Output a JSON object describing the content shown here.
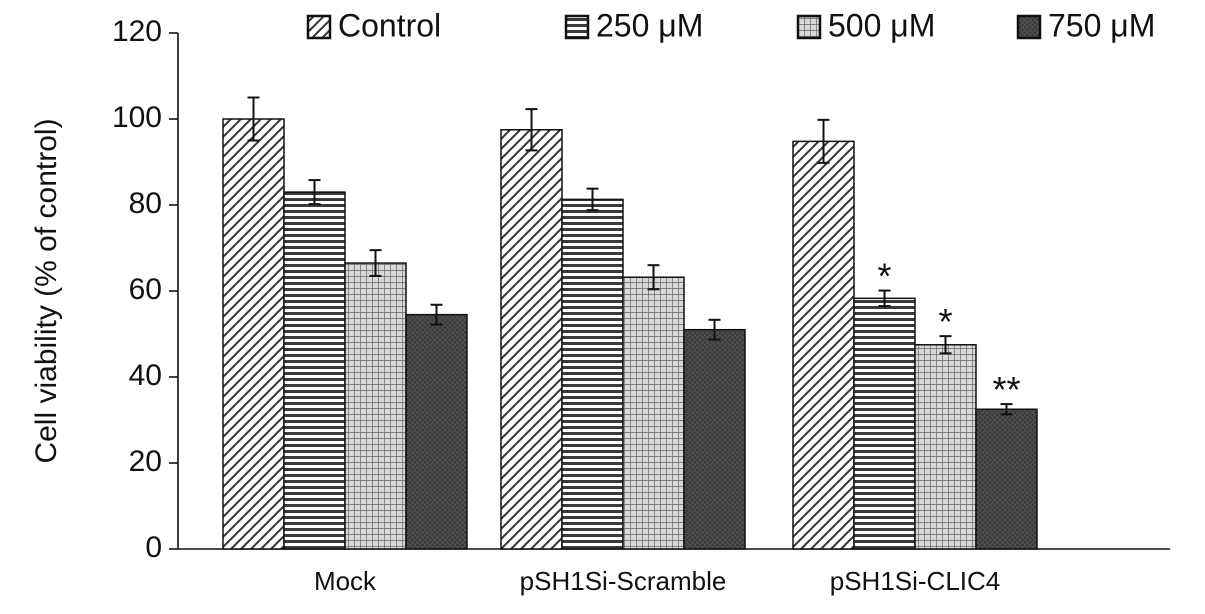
{
  "chart_data": {
    "type": "bar",
    "categories": [
      "Mock",
      "pSH1Si-Scramble",
      "pSH1Si-CLIC4"
    ],
    "series": [
      {
        "name": "Control",
        "pattern": "diagonal",
        "values": [
          100,
          97.5,
          94.8
        ],
        "errors": [
          5,
          4.8,
          5
        ]
      },
      {
        "name": "250 μM",
        "pattern": "horizontal",
        "values": [
          83,
          81.3,
          58.3
        ],
        "errors": [
          2.8,
          2.5,
          1.8
        ]
      },
      {
        "name": "500 μM",
        "pattern": "grid",
        "values": [
          66.5,
          63.2,
          47.5
        ],
        "errors": [
          3,
          2.8,
          2
        ]
      },
      {
        "name": "750 μM",
        "pattern": "dark-crosshatch",
        "values": [
          54.5,
          51,
          32.5
        ],
        "errors": [
          2.3,
          2.3,
          1.2
        ]
      }
    ],
    "annotations": [
      {
        "category": "pSH1Si-CLIC4",
        "series": "250 μM",
        "text": "*"
      },
      {
        "category": "pSH1Si-CLIC4",
        "series": "500 μM",
        "text": "*"
      },
      {
        "category": "pSH1Si-CLIC4",
        "series": "750 μM",
        "text": "**"
      }
    ],
    "ylabel": "Cell viability (% of control)",
    "xlabel": "",
    "ylim": [
      0,
      120
    ],
    "yticks": [
      "0",
      "20",
      "40",
      "60",
      "80",
      "100",
      "120"
    ],
    "legend_position": "top",
    "grid": false
  }
}
